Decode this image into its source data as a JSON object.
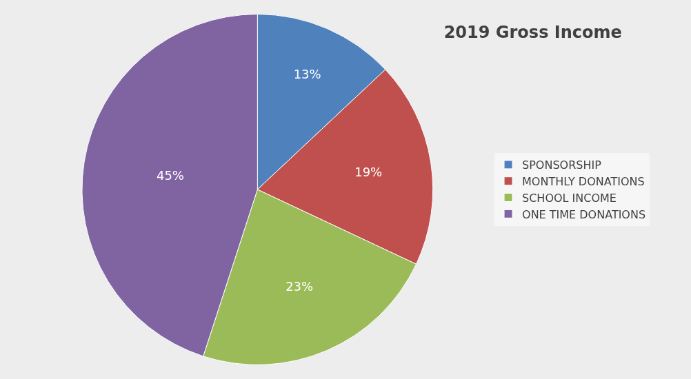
{
  "chart_data": {
    "type": "pie",
    "title": "2019 Gross Income",
    "categories": [
      "SPONSORSHIP",
      "MONTHLY DONATIONS",
      "SCHOOL INCOME",
      "ONE TIME DONATIONS"
    ],
    "values": [
      13,
      19,
      23,
      45
    ],
    "colors": [
      "#4f81bd",
      "#c0504d",
      "#9bbb59",
      "#8064a2"
    ],
    "value_labels": [
      "13%",
      "19%",
      "23%",
      "45%"
    ],
    "legend": "right"
  }
}
